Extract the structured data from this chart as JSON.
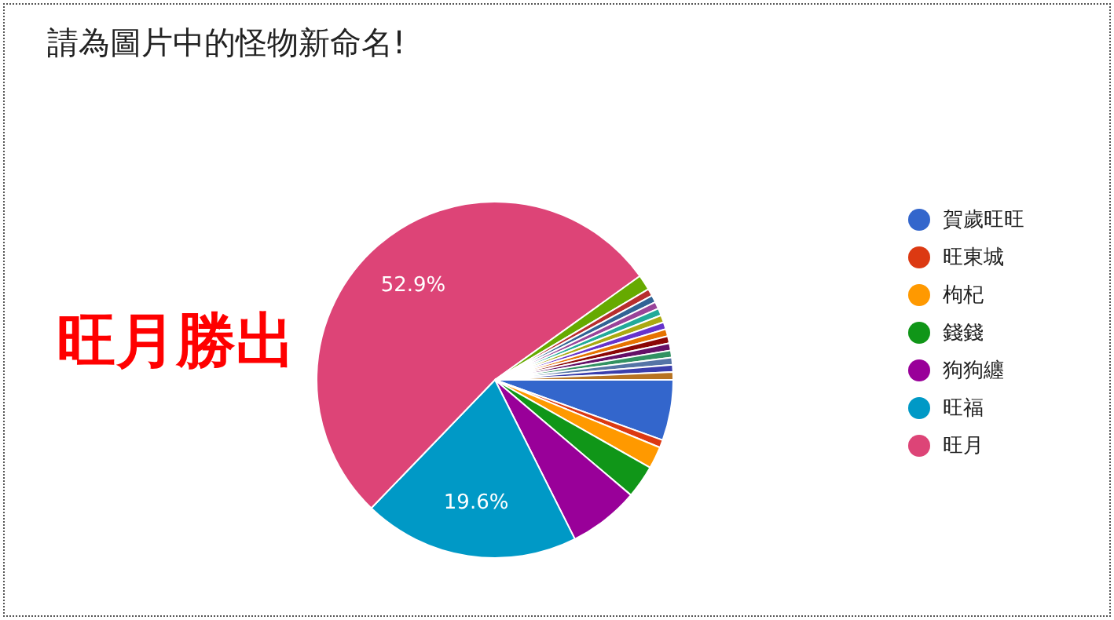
{
  "chart_data": {
    "type": "pie",
    "title": "請為圖片中的怪物新命名!",
    "categories": [
      "賀歲旺旺",
      "旺東城",
      "枸杞",
      "錢錢",
      "狗狗纏",
      "旺福",
      "旺月",
      null,
      null,
      null,
      null,
      null,
      null,
      null,
      null,
      null,
      null,
      null,
      null,
      null,
      null
    ],
    "values": [
      5.5,
      0.7,
      2,
      3,
      6.4,
      19.6,
      52.9,
      1.4,
      0.65,
      0.65,
      0.65,
      0.65,
      0.65,
      0.65,
      0.65,
      0.65,
      0.65,
      0.65,
      0.65,
      0.65,
      0.7
    ],
    "colors": [
      "#3366cc",
      "#dc3912",
      "#ff9900",
      "#109618",
      "#990099",
      "#0099c6",
      "#dd4477",
      "#66aa00",
      "#b82e2e",
      "#316395",
      "#994499",
      "#22aa99",
      "#aaaa11",
      "#6633cc",
      "#e67300",
      "#8b0707",
      "#651067",
      "#329262",
      "#5574a6",
      "#3b3eac",
      "#b77322"
    ],
    "value_labels": [
      null,
      null,
      null,
      null,
      null,
      "19.6%",
      "52.9%",
      null,
      null,
      null,
      null,
      null,
      null,
      null,
      null,
      null,
      null,
      null,
      null,
      null,
      null
    ],
    "legend": "right",
    "annotations": [
      "旺月勝出"
    ]
  }
}
